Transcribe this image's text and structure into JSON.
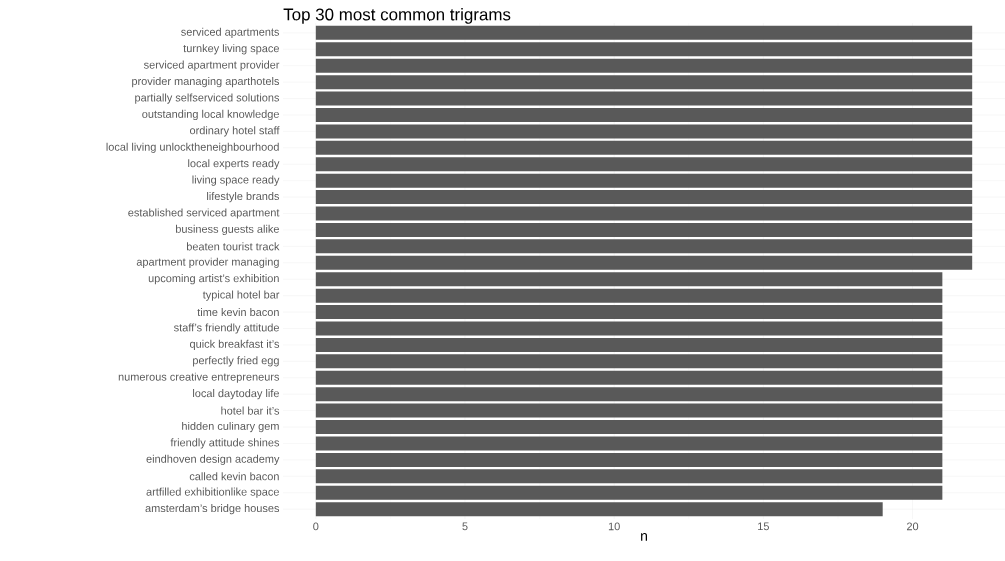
{
  "chart_data": {
    "type": "bar",
    "orientation": "horizontal",
    "title": "Top 30 most common trigrams",
    "xlabel": "n",
    "categories": [
      "serviced apartments",
      "turnkey living space",
      "serviced apartment provider",
      "provider managing aparthotels",
      "partially selfserviced solutions",
      "outstanding local knowledge",
      "ordinary hotel staff",
      "local living unlocktheneighbourhood",
      "local experts ready",
      "living space ready",
      "lifestyle brands",
      "established serviced apartment",
      "business guests alike",
      "beaten tourist track",
      "apartment provider managing",
      "upcoming artist’s exhibition",
      "typical hotel bar",
      "time kevin bacon",
      "staff’s friendly attitude",
      "quick breakfast it’s",
      "perfectly fried egg",
      "numerous creative entrepreneurs",
      "local daytoday life",
      "hotel bar it’s",
      "hidden culinary gem",
      "friendly attitude shines",
      "eindhoven design academy",
      "called kevin bacon",
      "artfilled exhibitionlike space",
      "amsterdam’s bridge houses"
    ],
    "values": [
      22,
      22,
      22,
      22,
      22,
      22,
      22,
      22,
      22,
      22,
      22,
      22,
      22,
      22,
      22,
      21,
      21,
      21,
      21,
      21,
      21,
      21,
      21,
      21,
      21,
      21,
      21,
      21,
      21,
      19
    ],
    "color": "#595959",
    "xlim": [
      -1.1,
      23.1
    ],
    "xticks": [
      0,
      5,
      10,
      15,
      20
    ],
    "grid": true
  }
}
